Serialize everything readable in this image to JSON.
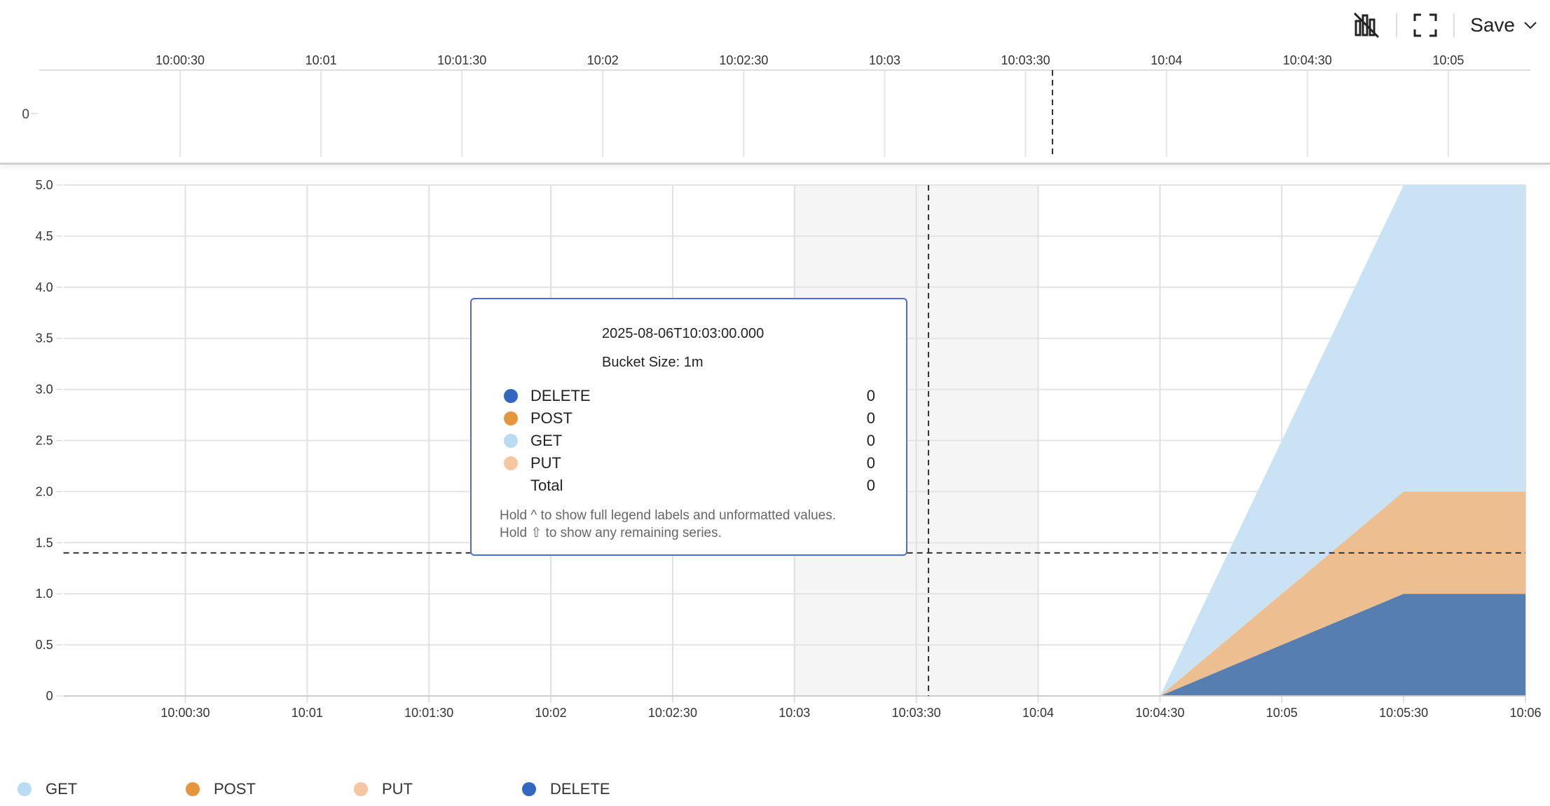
{
  "toolbar": {
    "hide_chart_icon": "bar-chart-off-icon",
    "fullscreen_icon": "fullscreen-icon",
    "save_label": "Save"
  },
  "overview": {
    "y_tick": "0",
    "x_ticks": [
      "10:00:30",
      "10:01",
      "10:01:30",
      "10:02",
      "10:02:30",
      "10:03",
      "10:03:30",
      "10:04",
      "10:04:30",
      "10:05"
    ]
  },
  "chart_data": {
    "type": "area",
    "stacked": true,
    "x": [
      "10:04:30",
      "10:05:30",
      "10:06"
    ],
    "xlim": [
      "10:00",
      "10:06"
    ],
    "x_ticks": [
      "10:00:30",
      "10:01",
      "10:01:30",
      "10:02",
      "10:02:30",
      "10:03",
      "10:03:30",
      "10:04",
      "10:04:30",
      "10:05",
      "10:05:30",
      "10:06"
    ],
    "ylim": [
      0,
      5
    ],
    "y_ticks": [
      "0",
      "0.5",
      "1.0",
      "1.5",
      "2.0",
      "2.5",
      "3.0",
      "3.5",
      "4.0",
      "4.5",
      "5.0"
    ],
    "grid": true,
    "legend_position": "bottom-left",
    "series": [
      {
        "name": "DELETE",
        "values": [
          0,
          1,
          1
        ],
        "color": "#3268c2",
        "fill": "#577eb1"
      },
      {
        "name": "POST",
        "values": [
          0,
          1,
          1
        ],
        "color": "#e6953f",
        "fill": "#edbe8f"
      },
      {
        "name": "GET",
        "values": [
          0,
          3,
          3
        ],
        "color": "#b9dcf3",
        "fill": "#c9e3f4"
      },
      {
        "name": "PUT",
        "values": [
          0,
          0,
          0
        ],
        "color": "#f5c6a0",
        "fill": "#f5c6a0"
      }
    ],
    "highlight_band": [
      "10:03",
      "10:04"
    ],
    "crosshair": {
      "x": "10:03:33",
      "y": 1.4
    }
  },
  "tooltip": {
    "timestamp": "2025-08-06T10:03:00.000",
    "bucket": "Bucket Size: 1m",
    "rows": [
      {
        "label": "DELETE",
        "value": "0",
        "color": "#3268c2"
      },
      {
        "label": "POST",
        "value": "0",
        "color": "#e6953f"
      },
      {
        "label": "GET",
        "value": "0",
        "color": "#b9dcf3"
      },
      {
        "label": "PUT",
        "value": "0",
        "color": "#f5c6a0"
      },
      {
        "label": "Total",
        "value": "0"
      }
    ],
    "hint1": "Hold ^ to show full legend labels and unformatted values.",
    "hint2": "Hold ⇧ to show any remaining series."
  },
  "legend": [
    {
      "label": "GET",
      "color": "#b9dcf3"
    },
    {
      "label": "POST",
      "color": "#e6953f"
    },
    {
      "label": "PUT",
      "color": "#f5c6a0"
    },
    {
      "label": "DELETE",
      "color": "#3268c2"
    }
  ]
}
